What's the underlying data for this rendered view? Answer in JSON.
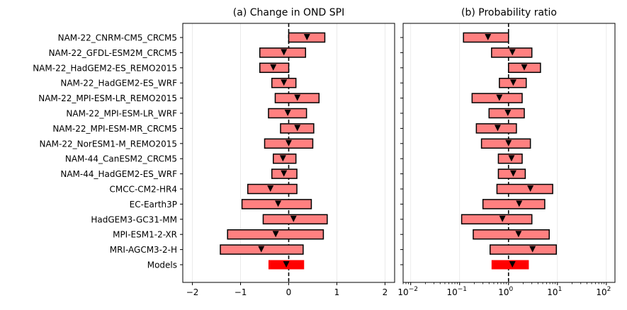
{
  "colors": {
    "bar_fill": "#ff8080",
    "bar_edge": "#000000",
    "ensemble_fill": "#ff0000",
    "marker": "#000000",
    "zero_line": "#000000",
    "grid": "#e6e6e6"
  },
  "models": [
    "NAM-22_CNRM-CM5_CRCM5",
    "NAM-22_GFDL-ESM2M_CRCM5",
    "NAM-22_HadGEM2-ES_REMO2015",
    "NAM-22_HadGEM2-ES_WRF",
    "NAM-22_MPI-ESM-LR_REMO2015",
    "NAM-22_MPI-ESM-LR_WRF",
    "NAM-22_MPI-ESM-MR_CRCM5",
    "NAM-22_NorESM1-M_REMO2015",
    "NAM-44_CanESM2_CRCM5",
    "NAM-44_HadGEM2-ES_WRF",
    "CMCC-CM2-HR4",
    "EC-Earth3P",
    "HadGEM3-GC31-MM",
    "MPI-ESM1-2-XR",
    "MRI-AGCM3-2-H",
    "Models"
  ],
  "chart_data": [
    {
      "type": "bar",
      "subtype": "horizontal-interval",
      "title": "(a) Change in OND SPI",
      "xlabel": "",
      "ylabel": "",
      "xscale": "linear",
      "xlim": [
        -2.2,
        2.2
      ],
      "xticks": [
        -2,
        -1,
        0,
        1,
        2
      ],
      "xtick_labels": [
        "−2",
        "−1",
        "0",
        "1",
        "2"
      ],
      "reference_line": 0,
      "grid": "vertical",
      "lower": [
        0.0,
        -0.6,
        -0.6,
        -0.35,
        -0.28,
        -0.42,
        -0.17,
        -0.5,
        -0.32,
        -0.35,
        -0.85,
        -0.97,
        -0.53,
        -1.27,
        -1.42,
        -0.42
      ],
      "upper": [
        0.75,
        0.35,
        0.0,
        0.15,
        0.63,
        0.37,
        0.52,
        0.5,
        0.15,
        0.17,
        0.17,
        0.47,
        0.8,
        0.72,
        0.3,
        0.32
      ],
      "best_estimate": [
        0.38,
        -0.1,
        -0.32,
        -0.1,
        0.18,
        -0.02,
        0.18,
        0.0,
        -0.12,
        -0.1,
        -0.38,
        -0.22,
        0.1,
        -0.27,
        -0.57,
        -0.05
      ]
    },
    {
      "type": "bar",
      "subtype": "horizontal-interval",
      "title": "(b) Probability ratio",
      "xlabel": "",
      "ylabel": "",
      "xscale": "log",
      "xlim": [
        0.007,
        150
      ],
      "xticks": [
        0.01,
        0.1,
        1,
        10,
        100
      ],
      "xtick_labels": [
        "10",
        "10",
        "10",
        "10",
        "10"
      ],
      "xtick_exponents": [
        "−2",
        "−1",
        "0",
        "1",
        "2"
      ],
      "reference_line": 1,
      "grid": "vertical",
      "lower": [
        0.12,
        0.45,
        1.0,
        0.65,
        0.18,
        0.4,
        0.22,
        0.28,
        0.62,
        0.62,
        0.58,
        0.3,
        0.11,
        0.19,
        0.42,
        0.45
      ],
      "upper": [
        1.0,
        3.0,
        4.5,
        2.3,
        1.9,
        2.1,
        1.45,
        2.8,
        1.9,
        2.2,
        8.0,
        5.5,
        3.0,
        6.8,
        9.5,
        2.6
      ],
      "best_estimate": [
        0.38,
        1.2,
        2.1,
        1.25,
        0.65,
        0.97,
        0.6,
        1.0,
        1.15,
        1.25,
        2.8,
        1.65,
        0.75,
        1.6,
        3.1,
        1.2
      ]
    }
  ]
}
